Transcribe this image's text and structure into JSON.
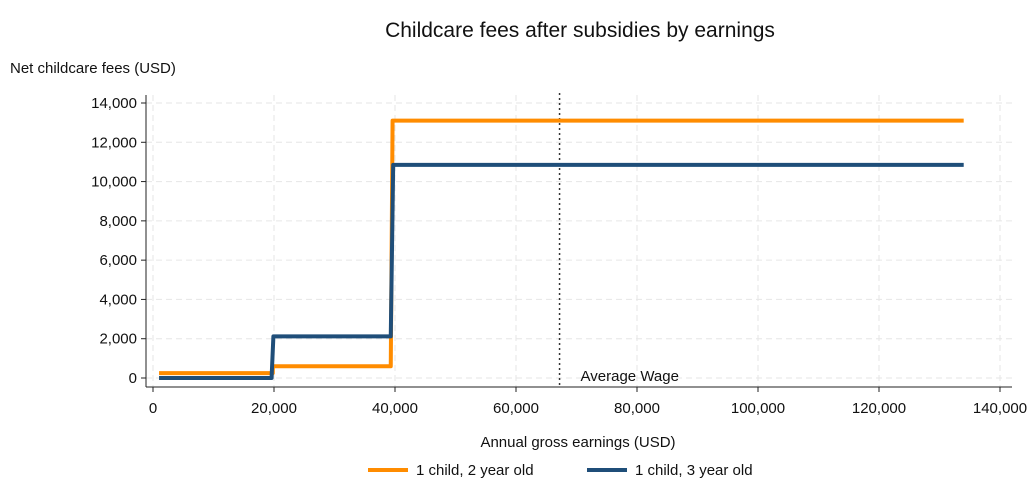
{
  "chart_data": {
    "type": "line",
    "title": "Childcare fees after subsidies by earnings",
    "ylabel": "Net childcare fees (USD)",
    "xlabel": "Annual gross earnings (USD)",
    "xlim": [
      0,
      140000
    ],
    "ylim": [
      0,
      14000
    ],
    "xticks": [
      0,
      20000,
      40000,
      60000,
      80000,
      100000,
      120000,
      140000
    ],
    "xtick_labels": [
      "0",
      "20,000",
      "40,000",
      "60,000",
      "80,000",
      "100,000",
      "120,000",
      "140,000"
    ],
    "yticks": [
      0,
      2000,
      4000,
      6000,
      8000,
      10000,
      12000,
      14000
    ],
    "ytick_labels": [
      "0",
      "2,000",
      "4,000",
      "6,000",
      "8,000",
      "10,000",
      "12,000",
      "14,000"
    ],
    "grid": true,
    "legend_position": "bottom",
    "series": [
      {
        "name": "1 child, 2 year old",
        "color": "#ff8c00",
        "x": [
          1000,
          19800,
          19800,
          39300,
          39600,
          134000
        ],
        "y": [
          250,
          250,
          600,
          600,
          13100,
          13100
        ]
      },
      {
        "name": "1 child, 3 year old",
        "color": "#1f4e79",
        "x": [
          1000,
          19600,
          19900,
          39300,
          39700,
          134000
        ],
        "y": [
          0,
          0,
          2120,
          2120,
          10850,
          10850
        ]
      }
    ],
    "annotations": [
      {
        "type": "vline",
        "x": 67200,
        "style": "dotted",
        "label": "Average Wage"
      }
    ]
  }
}
